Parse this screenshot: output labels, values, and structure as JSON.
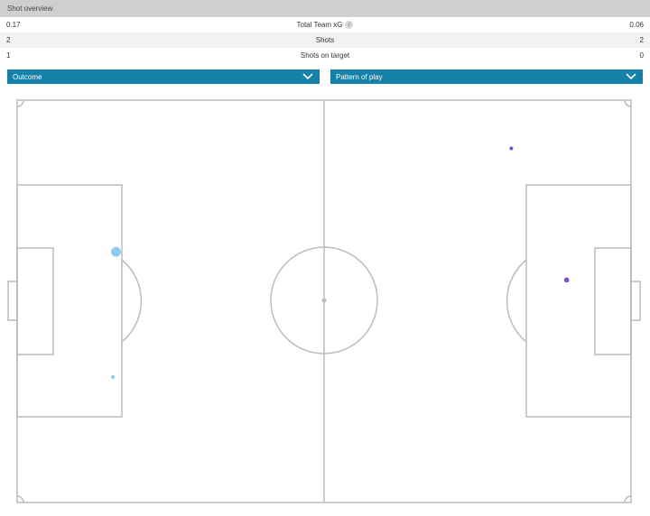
{
  "header": {
    "title": "Shot overview"
  },
  "stats": [
    {
      "home": "0.17",
      "label": "Total Team xG",
      "away": "0.06",
      "has_info": true
    },
    {
      "home": "2",
      "label": "Shots",
      "away": "2"
    },
    {
      "home": "1",
      "label": "Shots on target",
      "away": "0"
    }
  ],
  "filters": {
    "outcome": {
      "label": "Outcome",
      "icon": "chevron-down-icon"
    },
    "pattern": {
      "label": "Pattern of play",
      "icon": "chevron-down-icon"
    }
  },
  "info_icon_glyph": "i",
  "colors": {
    "header_bg": "#cfcfcf",
    "dropdown_bg": "#1580a8",
    "pitch_lines": "#bbbbbb",
    "home_shot": "#8ccbf0",
    "away_shot": "#7a4fd6"
  },
  "shots": [
    {
      "team": "home",
      "x": 16.1,
      "y": 37.7,
      "xg": 0.15
    },
    {
      "team": "home",
      "x": 15.6,
      "y": 68.8,
      "xg": 0.02
    },
    {
      "team": "away",
      "x": 89.5,
      "y": 44.7,
      "xg": 0.04
    },
    {
      "team": "away",
      "x": 80.5,
      "y": 12.0,
      "xg": 0.01
    }
  ]
}
